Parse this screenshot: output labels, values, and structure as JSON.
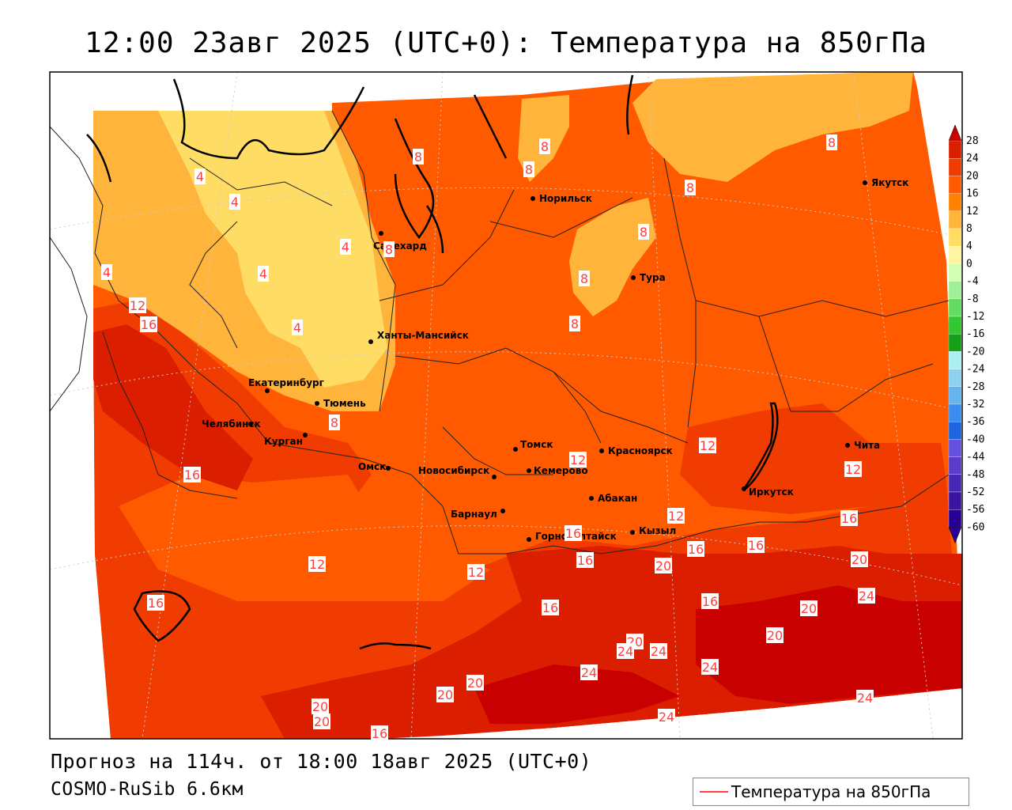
{
  "title": "12:00 23авг 2025 (UTC+0): Температура на 850гПа",
  "forecast_line": "Прогноз на 114ч. от 18:00 18авг 2025 (UTC+0)",
  "model_line": "COSMO-RuSib 6.6км",
  "legend_label": "Температура на 850гПа",
  "colorbar": {
    "top_label": "28",
    "levels": [
      "24",
      "20",
      "16",
      "12",
      "8",
      "4",
      "0",
      "-4",
      "-8",
      "-12",
      "-16",
      "-20",
      "-24",
      "-28",
      "-32",
      "-36",
      "-40",
      "-44",
      "-48",
      "-52",
      "-56",
      "-60"
    ],
    "colors": [
      "#c80000",
      "#dc1e00",
      "#f03c00",
      "#ff5a00",
      "#ff8200",
      "#ffb43c",
      "#ffdc64",
      "#fff5a0",
      "#d2ffb4",
      "#a0f096",
      "#64dc64",
      "#32c832",
      "#14a014",
      "#aaf0f0",
      "#8cd2f0",
      "#64b4f0",
      "#3c8cf0",
      "#1e64dc",
      "#6450dc",
      "#5a3cc8",
      "#4628b4",
      "#3c14a0",
      "#280096"
    ]
  },
  "cities": [
    {
      "name": "Якутск"
    },
    {
      "name": "Норильск"
    },
    {
      "name": "Салехард"
    },
    {
      "name": "Тура"
    },
    {
      "name": "Ханты-Мансийск"
    },
    {
      "name": "Екатеринбург"
    },
    {
      "name": "Тюмень"
    },
    {
      "name": "Челябинск"
    },
    {
      "name": "Курган"
    },
    {
      "name": "Томск"
    },
    {
      "name": "Красноярск"
    },
    {
      "name": "Чита"
    },
    {
      "name": "Омск"
    },
    {
      "name": "Новосибирск"
    },
    {
      "name": "Кемерово"
    },
    {
      "name": "Иркутск"
    },
    {
      "name": "Абакан"
    },
    {
      "name": "Барнаул"
    },
    {
      "name": "Кызыл"
    },
    {
      "name": "Горно-Алтайск"
    }
  ],
  "isotherm_labels": [
    "8",
    "8",
    "8",
    "8",
    "8",
    "8",
    "8",
    "8",
    "4",
    "4",
    "4",
    "4",
    "4",
    "4",
    "8",
    "12",
    "16",
    "8",
    "16",
    "12",
    "12",
    "12",
    "12",
    "12",
    "12",
    "16",
    "16",
    "16",
    "16",
    "20",
    "16",
    "16",
    "20",
    "24",
    "16",
    "16",
    "20",
    "20",
    "24",
    "20",
    "24",
    "24",
    "24",
    "20",
    "20",
    "20",
    "20",
    "16",
    "24",
    "24"
  ]
}
